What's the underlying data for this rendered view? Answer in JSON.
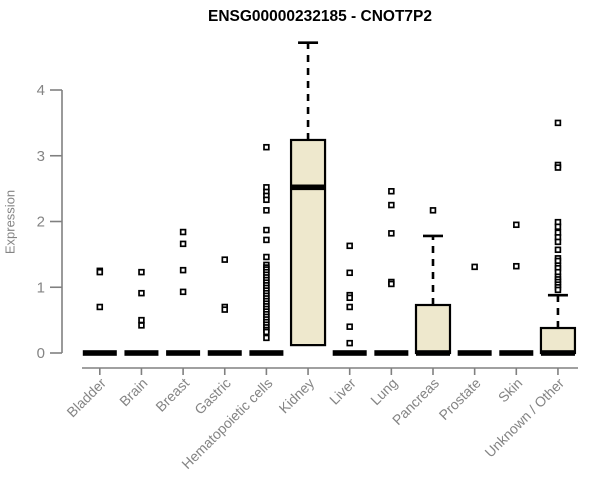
{
  "chart_data": {
    "type": "boxplot",
    "title": "ENSG00000232185 - CNOT7P2",
    "xlabel": "",
    "ylabel": "Expression",
    "yticks": [
      0,
      1,
      2,
      3,
      4
    ],
    "ylim": [
      0,
      4.85
    ],
    "grid": false,
    "legend": "none",
    "categories": [
      "Bladder",
      "Brain",
      "Breast",
      "Gastric",
      "Hematopoietic cells",
      "Kidney",
      "Liver",
      "Lung",
      "Pancreas",
      "Prostate",
      "Skin",
      "Unknown / Other"
    ],
    "boxes": [
      {
        "label": "Bladder",
        "median": 0,
        "q1": 0,
        "q3": 0,
        "whisker_low": 0,
        "whisker_high": 0,
        "outliers": [
          1.25,
          1.23,
          0.7
        ]
      },
      {
        "label": "Brain",
        "median": 0,
        "q1": 0,
        "q3": 0,
        "whisker_low": 0,
        "whisker_high": 0,
        "outliers": [
          1.23,
          0.91,
          0.5,
          0.42
        ]
      },
      {
        "label": "Breast",
        "median": 0,
        "q1": 0,
        "q3": 0,
        "whisker_low": 0,
        "whisker_high": 0,
        "outliers": [
          1.84,
          1.66,
          1.26,
          0.93
        ]
      },
      {
        "label": "Gastric",
        "median": 0,
        "q1": 0,
        "q3": 0,
        "whisker_low": 0,
        "whisker_high": 0,
        "outliers": [
          1.42,
          0.7,
          0.66
        ]
      },
      {
        "label": "Hematopoietic cells",
        "median": 0,
        "q1": 0,
        "q3": 0,
        "whisker_low": 0,
        "whisker_high": 0,
        "outliers": [
          3.13,
          2.52,
          2.45,
          2.39,
          2.33,
          2.17,
          1.87,
          1.72,
          1.46,
          1.34,
          1.3,
          1.27,
          1.23,
          1.19,
          1.15,
          1.11,
          1.07,
          1.03,
          0.99,
          0.95,
          0.91,
          0.87,
          0.83,
          0.79,
          0.75,
          0.71,
          0.67,
          0.63,
          0.59,
          0.55,
          0.51,
          0.47,
          0.43,
          0.39,
          0.35,
          0.32,
          0.23
        ]
      },
      {
        "label": "Kidney",
        "median": 2.52,
        "q1": 0.12,
        "q3": 3.24,
        "whisker_low": 0.12,
        "whisker_high": 4.72,
        "outliers": []
      },
      {
        "label": "Liver",
        "median": 0,
        "q1": 0,
        "q3": 0,
        "whisker_low": 0,
        "whisker_high": 0,
        "outliers": [
          1.63,
          1.22,
          0.88,
          0.84,
          0.7,
          0.4,
          0.15
        ]
      },
      {
        "label": "Lung",
        "median": 0,
        "q1": 0,
        "q3": 0,
        "whisker_low": 0,
        "whisker_high": 0,
        "outliers": [
          2.46,
          2.25,
          1.82,
          1.08,
          1.05
        ]
      },
      {
        "label": "Pancreas",
        "median": 0,
        "q1": 0,
        "q3": 0.73,
        "whisker_low": 0,
        "whisker_high": 1.78,
        "outliers": [
          2.17
        ]
      },
      {
        "label": "Prostate",
        "median": 0,
        "q1": 0,
        "q3": 0,
        "whisker_low": 0,
        "whisker_high": 0,
        "outliers": [
          1.31
        ]
      },
      {
        "label": "Skin",
        "median": 0,
        "q1": 0,
        "q3": 0,
        "whisker_low": 0,
        "whisker_high": 0,
        "outliers": [
          1.95,
          1.32
        ]
      },
      {
        "label": "Unknown / Other",
        "median": 0,
        "q1": 0,
        "q3": 0.38,
        "whisker_low": 0,
        "whisker_high": 0.88,
        "outliers": [
          3.5,
          2.86,
          2.82,
          1.99,
          1.92,
          1.83,
          1.76,
          1.69,
          1.57,
          1.44,
          1.4,
          1.33,
          1.29,
          1.23,
          1.16,
          1.12,
          1.08,
          1.04,
          1.0,
          0.96
        ]
      }
    ],
    "colors": {
      "box_fill": "#eee8cd",
      "box_stroke": "#000000",
      "median": "#000000",
      "whisker": "#000000",
      "outlier_stroke": "#000000",
      "outlier_fill": "#ffffff",
      "axis": "#808080",
      "tick_label": "#848484",
      "title": "#000000",
      "background": "#ffffff"
    }
  }
}
